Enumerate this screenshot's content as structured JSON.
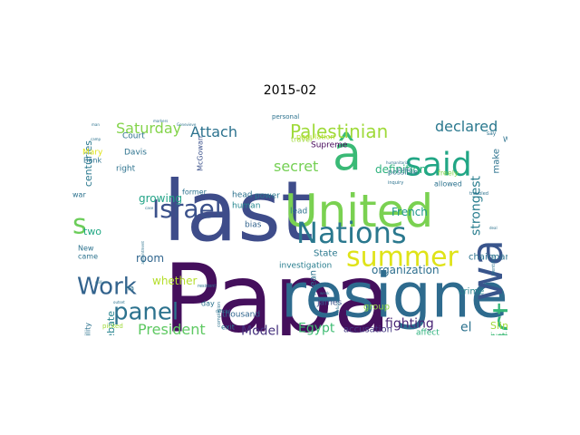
{
  "title": "2015-02",
  "words": [
    {
      "text": "Papa",
      "color": "#440f5c"
    },
    {
      "text": "last",
      "color": "#3e4c8a"
    },
    {
      "text": "resigned",
      "color": "#2e6b8e"
    },
    {
      "text": "United",
      "color": "#7ad151"
    },
    {
      "text": "â",
      "color": "#3aba76"
    },
    {
      "text": "Nations",
      "color": "#2a788e"
    },
    {
      "text": "wa",
      "color": "#39558c"
    },
    {
      "text": "conflict",
      "color": "#35b779"
    },
    {
      "text": "said",
      "color": "#21a685"
    },
    {
      "text": "summer",
      "color": "#dfe318"
    },
    {
      "text": "Israel",
      "color": "#3b518b"
    },
    {
      "text": "Work",
      "color": "#33638d"
    },
    {
      "text": "panel",
      "color": "#2c728e"
    },
    {
      "text": "Palestinian",
      "color": "#9fda3a"
    },
    {
      "text": "s",
      "color": "#6ccd5a"
    },
    {
      "text": "declared",
      "color": "#2a788e"
    },
    {
      "text": "Saturday",
      "color": "#84d44b"
    },
    {
      "text": "Attach",
      "color": "#2c728e"
    },
    {
      "text": "secret",
      "color": "#75d054"
    },
    {
      "text": "strongest",
      "color": "#287d8e"
    },
    {
      "text": "President",
      "color": "#5ec962"
    },
    {
      "text": "Model",
      "color": "#46327e"
    },
    {
      "text": "Egypt",
      "color": "#3fbc73"
    },
    {
      "text": "fighting",
      "color": "#482475"
    },
    {
      "text": "definition",
      "color": "#2db27d"
    },
    {
      "text": "organization",
      "color": "#2e6f8e"
    },
    {
      "text": "el",
      "color": "#2c728e"
    },
    {
      "text": "room",
      "color": "#31668e"
    },
    {
      "text": "growing",
      "color": "#20a386"
    },
    {
      "text": "whether",
      "color": "#b5de2b"
    },
    {
      "text": "French",
      "color": "#1f988b"
    },
    {
      "text": "debate",
      "color": "#25838e"
    },
    {
      "text": "centuries",
      "color": "#2a788e"
    },
    {
      "text": "two",
      "color": "#22a884"
    },
    {
      "text": "Slim",
      "color": "#a0da39"
    },
    {
      "text": "make",
      "color": "#2c728e"
    },
    {
      "text": "mean",
      "color": "#2c728e"
    },
    {
      "text": "chairman",
      "color": "#2c728e"
    },
    {
      "text": "State",
      "color": "#2a788e"
    },
    {
      "text": "group",
      "color": "#8fd744"
    },
    {
      "text": "crime",
      "color": "#25838e"
    },
    {
      "text": "accusation",
      "color": "#443983"
    },
    {
      "text": "justice",
      "color": "#3fbc73"
    },
    {
      "text": "affect",
      "color": "#2db27d"
    },
    {
      "text": "investigation",
      "color": "#287d8e"
    },
    {
      "text": "thousand",
      "color": "#31668e"
    },
    {
      "text": "exit",
      "color": "#2c728e"
    },
    {
      "text": "Supreme",
      "color": "#450559"
    },
    {
      "text": "James",
      "color": "#3b518b"
    },
    {
      "text": "lead",
      "color": "#2c728e"
    },
    {
      "text": "bias",
      "color": "#33638d"
    },
    {
      "text": "power",
      "color": "#2a788e"
    },
    {
      "text": "human",
      "color": "#24868e"
    },
    {
      "text": "head",
      "color": "#2c728e"
    },
    {
      "text": "Davis",
      "color": "#2c728e"
    },
    {
      "text": "Court",
      "color": "#2c728e"
    },
    {
      "text": "right",
      "color": "#2c728e"
    },
    {
      "text": "Bank",
      "color": "#2c728e"
    },
    {
      "text": "Mary",
      "color": "#dfe318"
    },
    {
      "text": "McGowan",
      "color": "#3b518b"
    },
    {
      "text": "former",
      "color": "#2c728e"
    },
    {
      "text": "war",
      "color": "#2c728e"
    },
    {
      "text": "New",
      "color": "#2c728e"
    },
    {
      "text": "came",
      "color": "#2c728e"
    },
    {
      "text": "ha",
      "color": "#2c728e"
    },
    {
      "text": "inability",
      "color": "#2c728e"
    },
    {
      "text": "picked",
      "color": "#9fda3a"
    },
    {
      "text": "day",
      "color": "#2c728e"
    },
    {
      "text": "travel",
      "color": "#9fda3a"
    },
    {
      "text": "population",
      "color": "#b5de2b"
    },
    {
      "text": "personal",
      "color": "#2c728e"
    },
    {
      "text": "possible",
      "color": "#2c728e"
    },
    {
      "text": "freely",
      "color": "#84d44b"
    },
    {
      "text": "allowed",
      "color": "#2c728e"
    },
    {
      "text": "West",
      "color": "#2c728e"
    },
    {
      "text": "say",
      "color": "#2c728e"
    },
    {
      "text": "troubled",
      "color": "#2c728e"
    },
    {
      "text": "identified",
      "color": "#2c728e"
    },
    {
      "text": "week",
      "color": "#2c728e"
    },
    {
      "text": "refugee",
      "color": "#2c728e"
    },
    {
      "text": "official",
      "color": "#2c728e"
    },
    {
      "text": "completion",
      "color": "#2c728e"
    },
    {
      "text": "resident",
      "color": "#2c728e"
    },
    {
      "text": "case",
      "color": "#2c728e"
    },
    {
      "text": "appointment",
      "color": "#2c728e"
    },
    {
      "text": "outset",
      "color": "#2c728e"
    },
    {
      "text": "million",
      "color": "#2c728e"
    },
    {
      "text": "camp",
      "color": "#2c728e"
    },
    {
      "text": "man",
      "color": "#2c728e"
    },
    {
      "text": "humanitarian",
      "color": "#2c728e"
    },
    {
      "text": "inquiry",
      "color": "#2c728e"
    },
    {
      "text": "Schabas",
      "color": "#2c728e"
    },
    {
      "text": "Genevieve",
      "color": "#2c728e"
    },
    {
      "text": "deal",
      "color": "#2c728e"
    },
    {
      "text": "markers",
      "color": "#2c728e"
    }
  ]
}
